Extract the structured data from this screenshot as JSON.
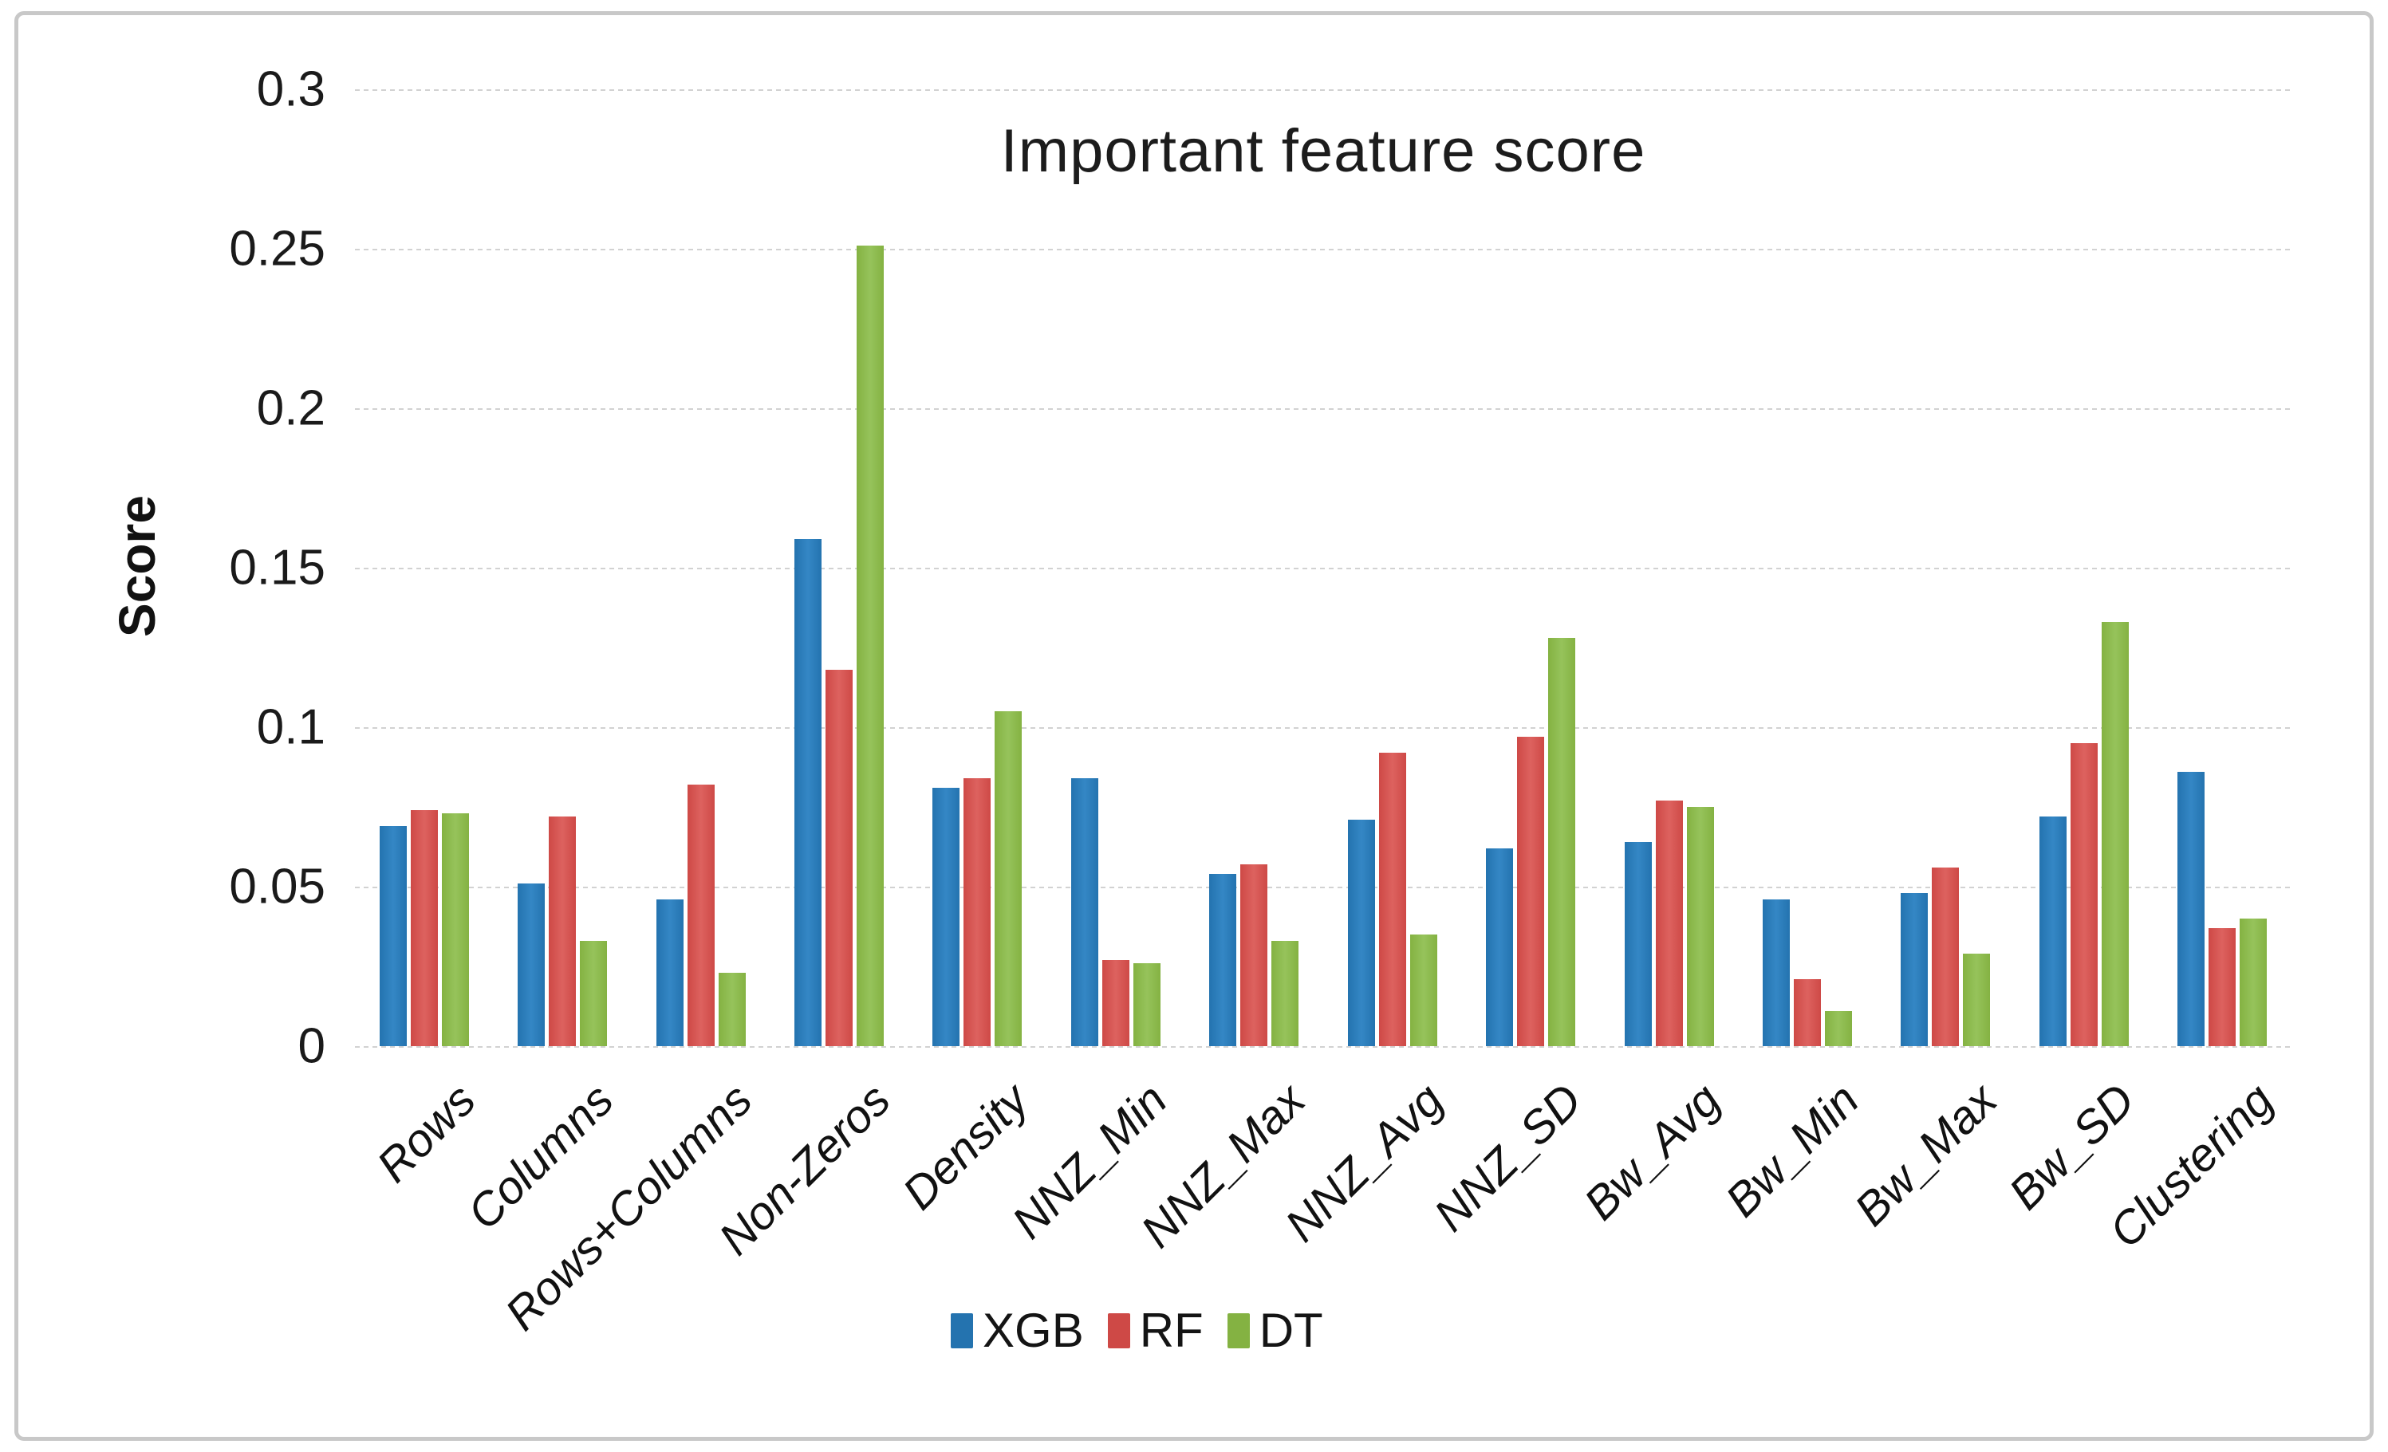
{
  "chart_data": {
    "type": "bar",
    "title": "Important feature score",
    "xlabel": "",
    "ylabel": "Score",
    "ylim": [
      0,
      0.3
    ],
    "y_ticks": [
      0,
      0.05,
      0.1,
      0.15,
      0.2,
      0.25,
      0.3
    ],
    "y_tick_labels": [
      "0",
      "0.05",
      "0.1",
      "0.15",
      "0.2",
      "0.25",
      "0.3"
    ],
    "grid": true,
    "gridline_color": "#d2d2d2",
    "legend_position": "bottom",
    "categories": [
      "Rows",
      "Columns",
      "Rows+Columns",
      "Non-Zeros",
      "Density",
      "NNZ_Min",
      "NNZ_Max",
      "NNZ_Avg",
      "NNZ_SD",
      "Bw_Avg",
      "Bw_Min",
      "Bw_Max",
      "Bw_SD",
      "Clustering"
    ],
    "series": [
      {
        "name": "XGB",
        "color": "#2473AF",
        "color_light": "#3487C5",
        "values": [
          0.069,
          0.051,
          0.046,
          0.159,
          0.081,
          0.084,
          0.054,
          0.071,
          0.062,
          0.064,
          0.046,
          0.048,
          0.072,
          0.086
        ]
      },
      {
        "name": "RF",
        "color": "#CE4946",
        "color_light": "#DD625F",
        "values": [
          0.074,
          0.072,
          0.082,
          0.118,
          0.084,
          0.027,
          0.057,
          0.092,
          0.097,
          0.077,
          0.021,
          0.056,
          0.095,
          0.037
        ]
      },
      {
        "name": "DT",
        "color": "#84B242",
        "color_light": "#96C35B",
        "values": [
          0.073,
          0.033,
          0.023,
          0.251,
          0.105,
          0.026,
          0.033,
          0.035,
          0.128,
          0.075,
          0.011,
          0.029,
          0.133,
          0.04
        ]
      }
    ]
  }
}
